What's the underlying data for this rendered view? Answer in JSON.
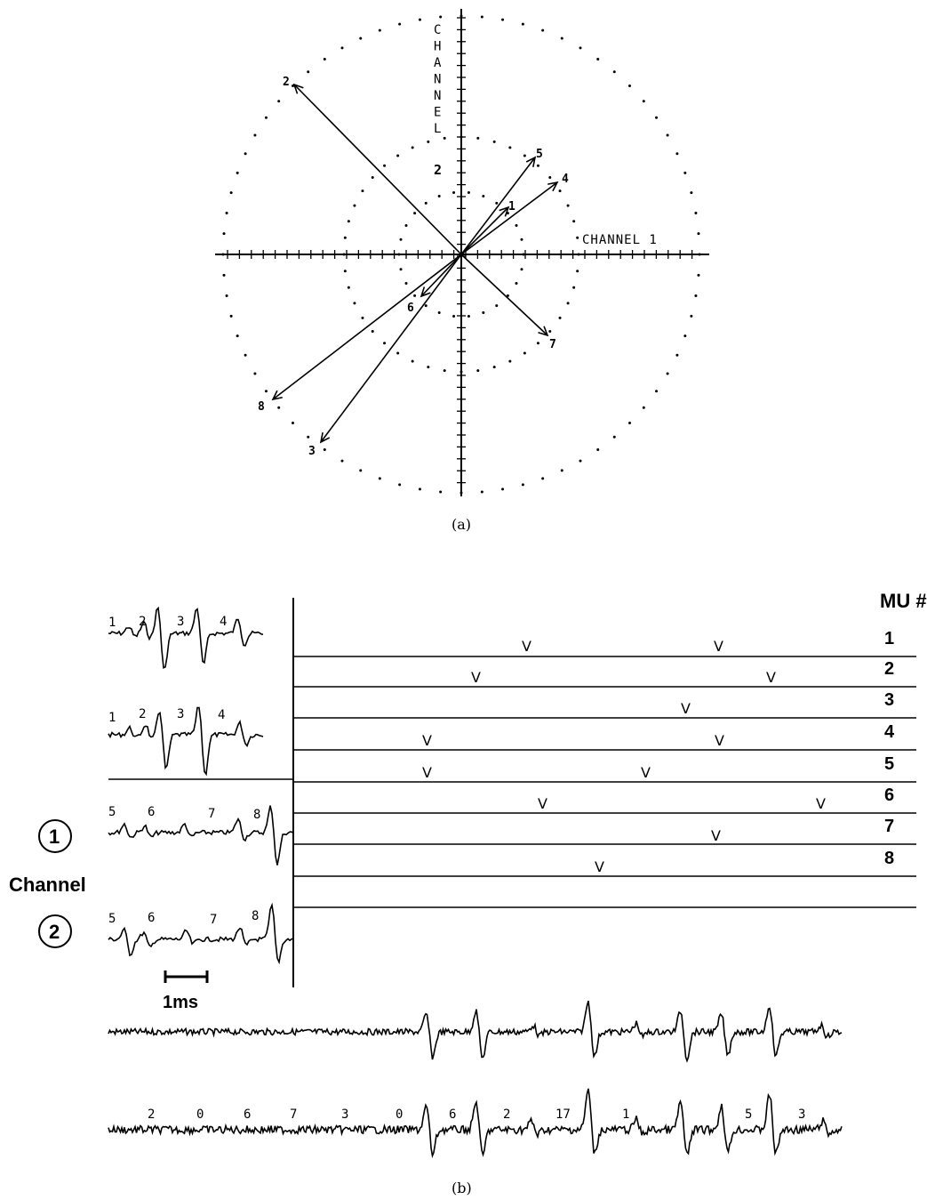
{
  "panel_a": {
    "caption": "(a)",
    "axis_x_label": "CHANNEL 1",
    "axis_y_label": "CHANNEL",
    "axis_y_label_2": "2",
    "vectors": [
      {
        "label": "1"
      },
      {
        "label": "2"
      },
      {
        "label": "3"
      },
      {
        "label": "4"
      },
      {
        "label": "5"
      },
      {
        "label": "6"
      },
      {
        "label": "7"
      },
      {
        "label": "8"
      }
    ]
  },
  "panel_b": {
    "caption": "(b)",
    "mu_header": "MU #",
    "mu_rows": [
      "1",
      "2",
      "3",
      "4",
      "5",
      "6",
      "7",
      "8"
    ],
    "channel_label": "Channel",
    "channel_1_number": "1",
    "channel_2_number": "2",
    "scale_bar_label": "1ms",
    "template_labels_group_1": [
      "1",
      "2",
      "3",
      "4"
    ],
    "template_labels_group_2": [
      "5",
      "6",
      "7",
      "8"
    ],
    "spike_marker_glyph": "V",
    "trace_labels": [
      "2",
      "0",
      "6",
      "7",
      "3",
      "0",
      "6",
      "2",
      "17",
      "1",
      "5",
      "3"
    ]
  }
}
